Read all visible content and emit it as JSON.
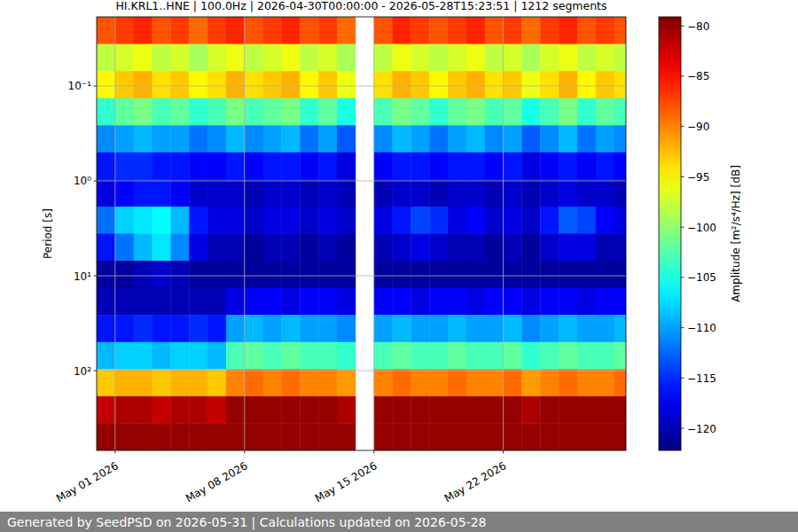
{
  "chart_data": {
    "type": "heatmap",
    "title": "HI.KRL1..HNE | 100.0Hz | 2026-04-30T00:00:00 - 2026-05-28T15:23:51 | 1212 segments",
    "y_label": "Period [s]",
    "footer": "Generated by SeedPSD on 2026-05-31 | Calculations updated on 2026-05-28",
    "color": "jet",
    "log": "y",
    "grid": true,
    "x": [
      "2026-04-30",
      "2026-05-01",
      "2026-05-02",
      "2026-05-03",
      "2026-05-04",
      "2026-05-05",
      "2026-05-06",
      "2026-05-07",
      "2026-05-08",
      "2026-05-09",
      "2026-05-10",
      "2026-05-11",
      "2026-05-12",
      "2026-05-13",
      "2026-05-14",
      "2026-05-15",
      "2026-05-16",
      "2026-05-17",
      "2026-05-18",
      "2026-05-19",
      "2026-05-20",
      "2026-05-21",
      "2026-05-22",
      "2026-05-23",
      "2026-05-24",
      "2026-05-25",
      "2026-05-26",
      "2026-05-27",
      "2026-05-28"
    ],
    "y_bins": [
      0.0187,
      0.0361,
      0.0697,
      0.1344,
      0.2594,
      0.5006,
      0.966,
      1.864,
      3.597,
      6.94,
      13.4,
      25.85,
      49.89,
      96.27,
      185.8,
      358.5,
      692
    ],
    "xlim": [
      "2026-04-30T00:00:00",
      "2026-05-28T15:23:51"
    ],
    "xticks": [
      {
        "value": "2026-05-01",
        "label": "May 01 2026"
      },
      {
        "value": "2026-05-08",
        "label": "May 08 2026"
      },
      {
        "value": "2026-05-15",
        "label": "May 15 2026"
      },
      {
        "value": "2026-05-22",
        "label": "May 22 2026"
      }
    ],
    "ylim": [
      0.0187,
      692
    ],
    "yticks": [
      {
        "value": 0.1,
        "label": "10⁻¹"
      },
      {
        "value": 1,
        "label": "10⁰"
      },
      {
        "value": 10,
        "label": "10¹"
      },
      {
        "value": 100,
        "label": "10²"
      }
    ],
    "cells": [
      [
        -88,
        -87,
        -86,
        -88,
        -87,
        -89,
        -87,
        -86,
        -88,
        -87,
        -86,
        -88,
        -87,
        -89,
        null,
        -88,
        -86,
        -87,
        -88,
        -87,
        -86,
        -88,
        -87,
        -89,
        -87,
        -86,
        -88,
        -87,
        -88
      ],
      [
        -98,
        -97,
        -96,
        -98,
        -97,
        -99,
        -97,
        -96,
        -98,
        -97,
        -96,
        -98,
        -97,
        -99,
        null,
        -98,
        -96,
        -97,
        -98,
        -97,
        -96,
        -98,
        -97,
        -99,
        -97,
        -96,
        -98,
        -97,
        -98
      ],
      [
        -95,
        -93,
        -92,
        -94,
        -93,
        -95,
        -94,
        -92,
        -94,
        -93,
        -92,
        -95,
        -93,
        -96,
        null,
        -94,
        -92,
        -93,
        -95,
        -93,
        -92,
        -94,
        -93,
        -96,
        -94,
        -92,
        -95,
        -93,
        -94
      ],
      [
        -104,
        -102,
        -101,
        -103,
        -102,
        -104,
        -103,
        -101,
        -103,
        -102,
        -101,
        -104,
        -102,
        -105,
        null,
        -103,
        -101,
        -102,
        -104,
        -102,
        -101,
        -103,
        -102,
        -105,
        -103,
        -101,
        -104,
        -102,
        -103
      ],
      [
        -111,
        -110,
        -109,
        -110,
        -110,
        -112,
        -111,
        -109,
        -111,
        -110,
        -109,
        -112,
        -110,
        -113,
        null,
        -111,
        -109,
        -110,
        -112,
        -110,
        -109,
        -111,
        -110,
        -113,
        -111,
        -109,
        -112,
        -110,
        -111
      ],
      [
        -116,
        -115,
        -115,
        -116,
        -116,
        -117,
        -117,
        -116,
        -117,
        -116,
        -116,
        -117,
        -116,
        -118,
        null,
        -117,
        -116,
        -116,
        -117,
        -116,
        -116,
        -117,
        -116,
        -118,
        -117,
        -116,
        -117,
        -116,
        -117
      ],
      [
        -118,
        -117,
        -116,
        -116,
        -117,
        -119,
        -119,
        -119,
        -120,
        -119,
        -119,
        -120,
        -119,
        -120,
        null,
        -120,
        -119,
        -119,
        -120,
        -119,
        -119,
        -120,
        -119,
        -120,
        -119,
        -118,
        -119,
        -119,
        -120
      ],
      [
        -112,
        -108,
        -107,
        -106,
        -109,
        -116,
        -118,
        -118,
        -119,
        -118,
        -118,
        -119,
        -118,
        -119,
        null,
        -118,
        -116,
        -114,
        -115,
        -118,
        -117,
        -119,
        -118,
        -119,
        -116,
        -113,
        -114,
        -117,
        -118
      ],
      [
        -116,
        -112,
        -109,
        -107,
        -111,
        -118,
        -120,
        -120,
        -121,
        -120,
        -120,
        -121,
        -120,
        -121,
        null,
        -120,
        -119,
        -118,
        -119,
        -120,
        -120,
        -121,
        -120,
        -121,
        -119,
        -118,
        -118,
        -120,
        -120
      ],
      [
        -121,
        -121,
        -120,
        -119,
        -120,
        -121,
        -121,
        -121,
        -121,
        -121,
        -121,
        -121,
        -121,
        -121,
        null,
        -121,
        -121,
        -121,
        -121,
        -121,
        -121,
        -121,
        -121,
        -121,
        -121,
        -121,
        -121,
        -121,
        -121
      ],
      [
        -120,
        -120,
        -120,
        -120,
        -120,
        -120,
        -120,
        -118,
        -117,
        -117,
        -118,
        -117,
        -117,
        -118,
        null,
        -117,
        -117,
        -118,
        -117,
        -117,
        -118,
        -117,
        -117,
        -118,
        -117,
        -117,
        -118,
        -117,
        -117
      ],
      [
        -116,
        -116,
        -115,
        -116,
        -116,
        -115,
        -116,
        -110,
        -109,
        -110,
        -109,
        -110,
        -110,
        -111,
        null,
        -110,
        -109,
        -110,
        -110,
        -109,
        -110,
        -110,
        -109,
        -111,
        -110,
        -109,
        -110,
        -110,
        -109
      ],
      [
        -109,
        -108,
        -108,
        -109,
        -108,
        -108,
        -109,
        -103,
        -102,
        -103,
        -102,
        -103,
        -103,
        -104,
        null,
        -103,
        -102,
        -103,
        -103,
        -102,
        -103,
        -103,
        -102,
        -104,
        -103,
        -102,
        -103,
        -103,
        -102
      ],
      [
        -93,
        -92,
        -92,
        -93,
        -92,
        -92,
        -93,
        -90,
        -89,
        -90,
        -89,
        -90,
        -90,
        -91,
        null,
        -90,
        -89,
        -90,
        -90,
        -89,
        -90,
        -90,
        -89,
        -91,
        -90,
        -89,
        -90,
        -90,
        -89
      ],
      [
        -82,
        -81,
        -81,
        -82,
        -81,
        -81,
        -82,
        -80,
        -80,
        -80,
        -80,
        -80,
        -80,
        -81,
        null,
        -80,
        -80,
        -80,
        -80,
        -80,
        -80,
        -80,
        -80,
        -81,
        -80,
        -80,
        -80,
        -80,
        -80
      ],
      [
        -80,
        -80,
        -80,
        -80,
        -80,
        -80,
        -80,
        -80,
        -80,
        -80,
        -80,
        -80,
        -80,
        -80,
        null,
        -80,
        -80,
        -80,
        -80,
        -80,
        -80,
        -80,
        -80,
        -80,
        -80,
        -80,
        -80,
        -80,
        -80
      ]
    ],
    "colorbar": {
      "label": "Amplitude [m²/s⁴/Hz] [dB]",
      "range": [
        -122.2,
        -79.1
      ],
      "ticks": [
        {
          "value": -80,
          "label": "−80"
        },
        {
          "value": -85,
          "label": "−85"
        },
        {
          "value": -90,
          "label": "−90"
        },
        {
          "value": -95,
          "label": "−95"
        },
        {
          "value": -100,
          "label": "−100"
        },
        {
          "value": -105,
          "label": "−105"
        },
        {
          "value": -110,
          "label": "−110"
        },
        {
          "value": -115,
          "label": "−115"
        },
        {
          "value": -120,
          "label": "−120"
        }
      ]
    }
  }
}
